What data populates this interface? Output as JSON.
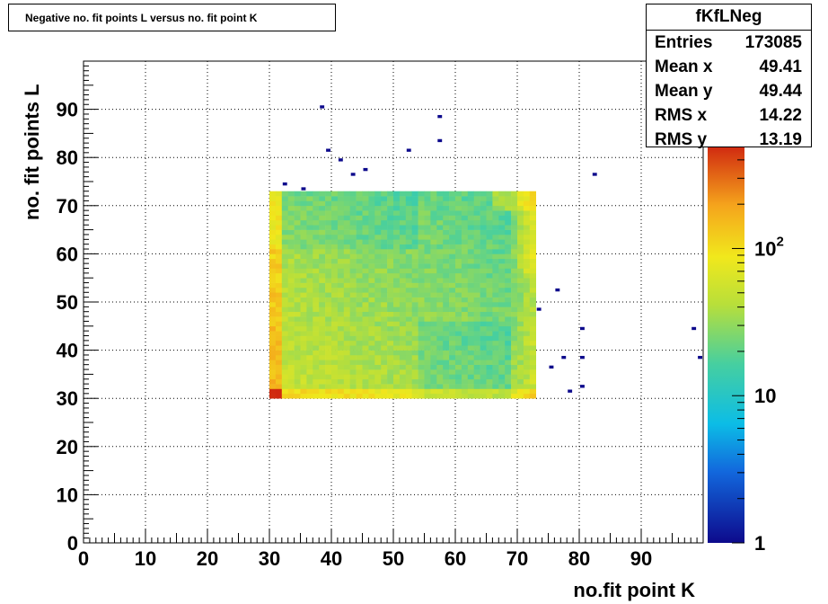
{
  "title": "Negative no. fit points L versus no. fit point K",
  "stats": {
    "name": "fKfLNeg",
    "rows": [
      {
        "label": "Entries",
        "value": "173085"
      },
      {
        "label": "Mean x",
        "value": "49.41"
      },
      {
        "label": "Mean y",
        "value": "49.44"
      },
      {
        "label": "RMS x",
        "value": "14.22"
      },
      {
        "label": "RMS y",
        "value": "13.19"
      }
    ]
  },
  "chart_data": {
    "type": "heatmap",
    "title": "Negative no. fit points L versus no. fit point K",
    "xlabel": "no.fit point K",
    "ylabel": "no. fit points  L",
    "xlim": [
      0,
      100
    ],
    "ylim": [
      0,
      100
    ],
    "x_ticks": [
      "0",
      "10",
      "20",
      "30",
      "40",
      "50",
      "60",
      "70",
      "80",
      "90"
    ],
    "y_ticks": [
      "0",
      "10",
      "20",
      "30",
      "40",
      "50",
      "60",
      "70",
      "80",
      "90"
    ],
    "grid": true,
    "z_scale": "log",
    "z_range": [
      1,
      500
    ],
    "z_tick_labels": [
      {
        "value": 1,
        "label": "1"
      },
      {
        "value": 10,
        "label": "10"
      },
      {
        "value": 100,
        "label": "10",
        "exponent": "2"
      }
    ],
    "dense_region": {
      "x_range": [
        30,
        73
      ],
      "y_range": [
        30,
        73
      ],
      "bin_width": 1
    },
    "sparse_points": [
      [
        38,
        90
      ],
      [
        57,
        88
      ],
      [
        57,
        83
      ],
      [
        39,
        81
      ],
      [
        52,
        81
      ],
      [
        41,
        79
      ],
      [
        45,
        77
      ],
      [
        43,
        76
      ],
      [
        82,
        76
      ],
      [
        32,
        74
      ],
      [
        35,
        73
      ],
      [
        76,
        52
      ],
      [
        73,
        48
      ],
      [
        80,
        44
      ],
      [
        98,
        44
      ],
      [
        77,
        38
      ],
      [
        80,
        38
      ],
      [
        99,
        38
      ],
      [
        75,
        36
      ],
      [
        80,
        32
      ],
      [
        78,
        31
      ]
    ]
  }
}
